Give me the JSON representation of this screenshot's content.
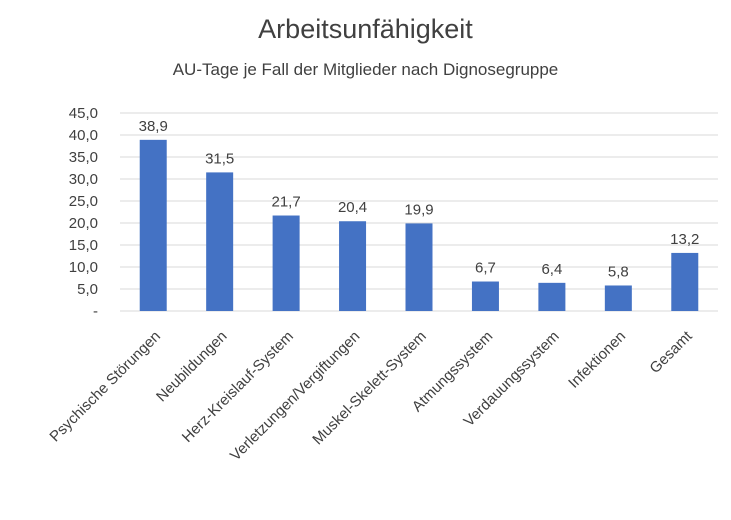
{
  "chart_data": {
    "type": "bar",
    "title": "Arbeitsunfähigkeit",
    "subtitle": "AU-Tage je Fall der Mitglieder nach Dignosegruppe",
    "categories": [
      "Psychische Störungen",
      "Neubildungen",
      "Herz-Kreislauf-System",
      "Verletzungen/Vergiftungen",
      "Muskel-Skelett-System",
      "Atmungssystem",
      "Verdauungssystem",
      "Infektionen",
      "Gesamt"
    ],
    "values": [
      38.9,
      31.5,
      21.7,
      20.4,
      19.9,
      6.7,
      6.4,
      5.8,
      13.2
    ],
    "data_labels": [
      "38,9",
      "31,5",
      "21,7",
      "20,4",
      "19,9",
      "6,7",
      "6,4",
      "5,8",
      "13,2"
    ],
    "ylim": [
      0,
      45
    ],
    "yticks": [
      0,
      5,
      10,
      15,
      20,
      25,
      30,
      35,
      40,
      45
    ],
    "ytick_labels": [
      "-",
      "5,0",
      "10,0",
      "15,0",
      "20,0",
      "25,0",
      "30,0",
      "35,0",
      "40,0",
      "45,0"
    ],
    "grid": true,
    "bar_color": "#4472c4",
    "grid_color": "#d9d9d9"
  }
}
